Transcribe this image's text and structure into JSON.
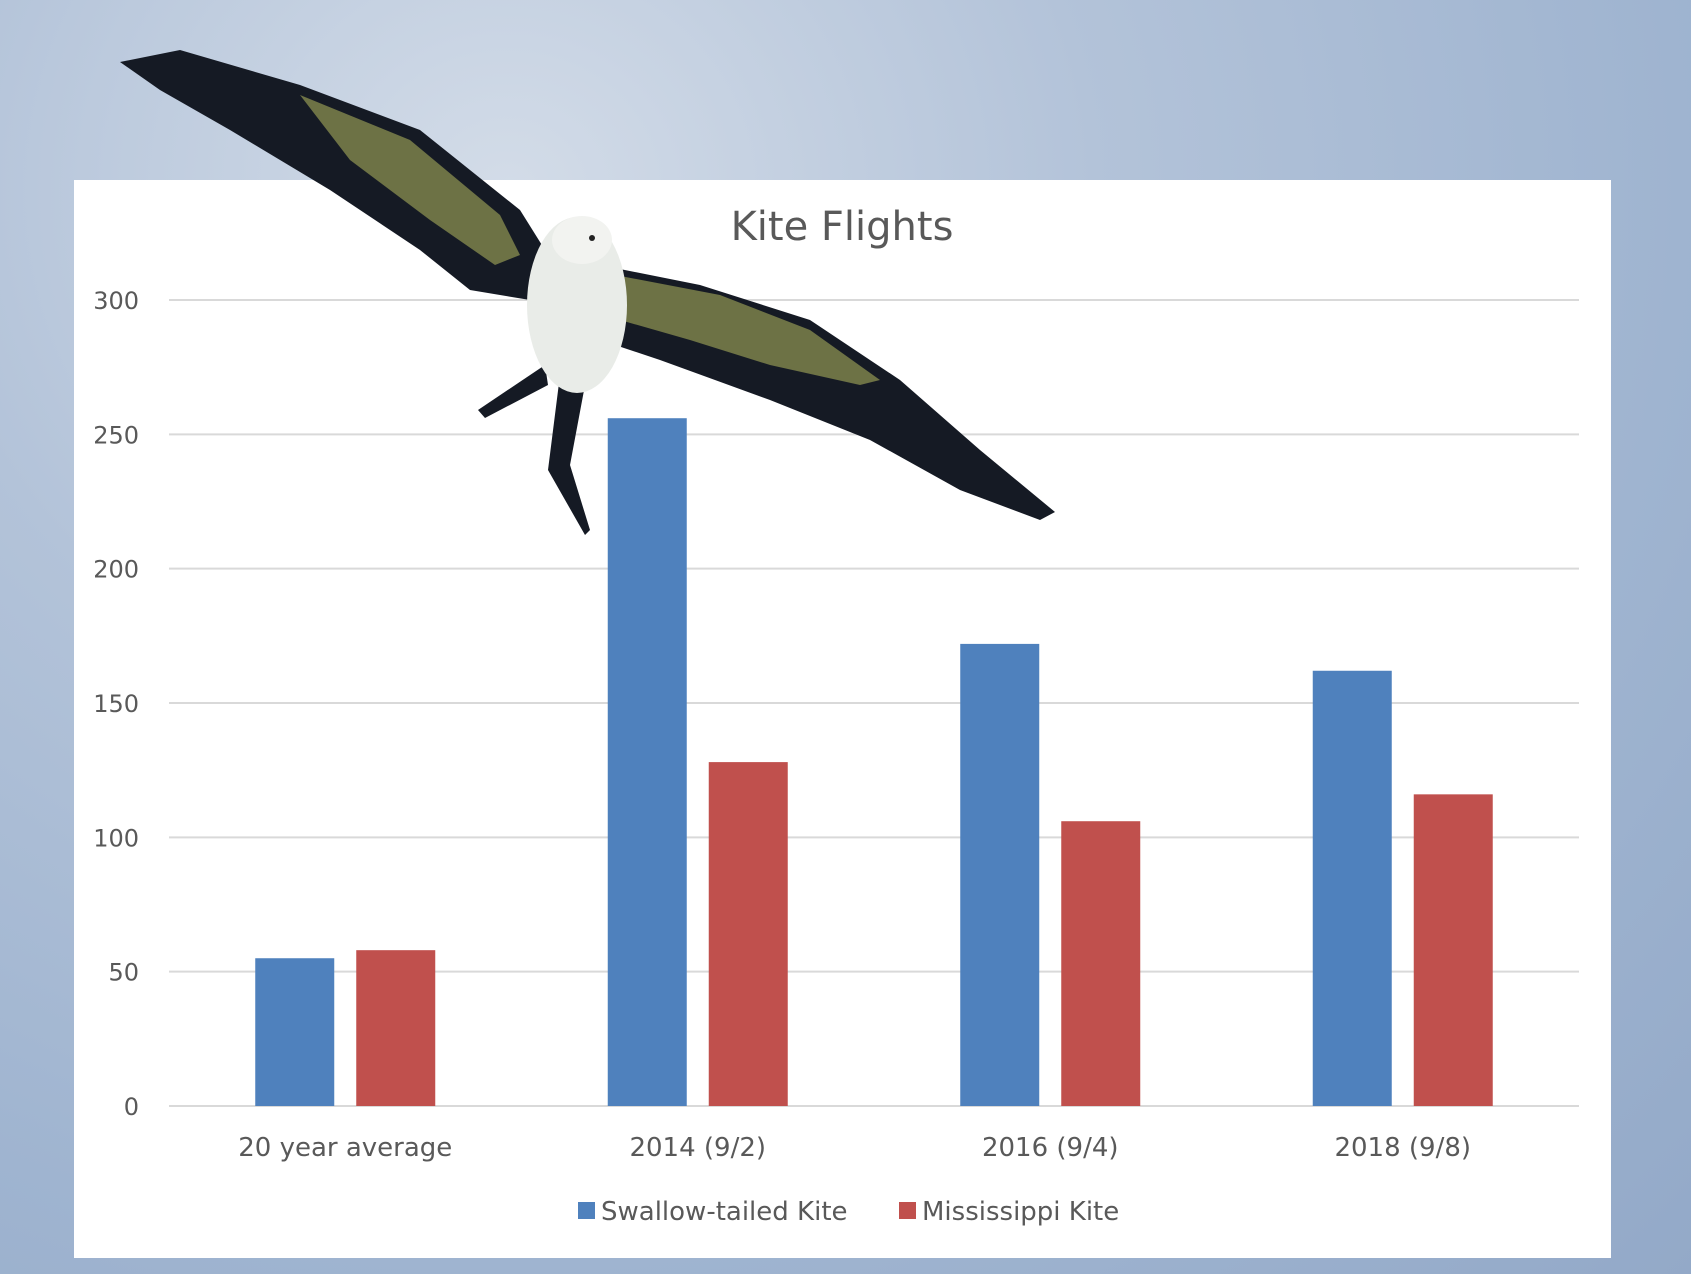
{
  "chart_data": {
    "type": "bar",
    "title": "Kite Flights",
    "categories": [
      "20 year average",
      "2014 (9/2)",
      "2016 (9/4)",
      "2018 (9/8)"
    ],
    "series": [
      {
        "name": "Swallow-tailed Kite",
        "color": "#4f81bd",
        "values": [
          55,
          256,
          172,
          162
        ]
      },
      {
        "name": "Mississippi Kite",
        "color": "#c0504d",
        "values": [
          58,
          128,
          106,
          116
        ]
      }
    ],
    "yticks": [
      "0",
      "50",
      "100",
      "150",
      "200",
      "250",
      "300"
    ],
    "ylim": [
      0,
      300
    ],
    "grid": true,
    "legend": "bottom"
  },
  "decoration": {
    "icon": "swallow-tailed-kite-bird-photo"
  }
}
